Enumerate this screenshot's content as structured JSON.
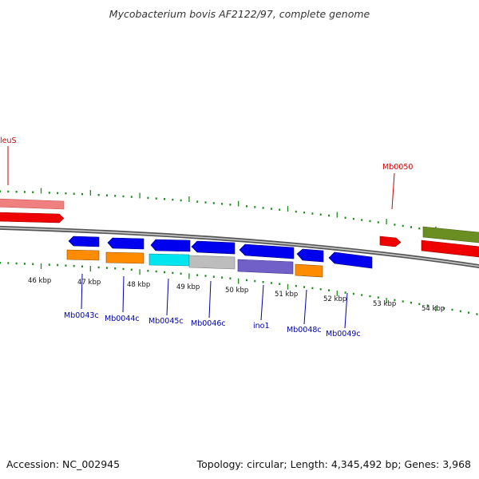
{
  "title": "Mycobacterium bovis AF2122/97, complete genome",
  "footer": {
    "accession": "Accession: NC_002945",
    "info": "Topology: circular; Length: 4,345,492 bp; Genes: 3,968"
  },
  "colors": {
    "gene_blue": "#0000ee",
    "gene_orange": "#ff8c00",
    "gene_cyan": "#00e5ee",
    "gene_grey": "#bdbdbd",
    "gene_purple": "#7060c8",
    "gene_red": "#ee0000",
    "gene_pink": "#f08080",
    "gene_olive": "#6b8e23",
    "tick_green": "#1a8c1a",
    "backbone": "#707070",
    "label_blue": "#0000aa",
    "label_red": "#cc0000"
  },
  "scale_labels": [
    "46 kbp",
    "47 kbp",
    "48 kbp",
    "49 kbp",
    "50 kbp",
    "51 kbp",
    "52 kbp",
    "53 kbp",
    "54 kbp"
  ],
  "gene_labels": {
    "leuS": "leuS",
    "Mb0050": "Mb0050",
    "Mb0043c": "Mb0043c",
    "Mb0044c": "Mb0044c",
    "Mb0045c": "Mb0045c",
    "Mb0046c": "Mb0046c",
    "ino1": "ino1",
    "Mb0048c": "Mb0048c",
    "Mb0049c": "Mb0049c"
  }
}
